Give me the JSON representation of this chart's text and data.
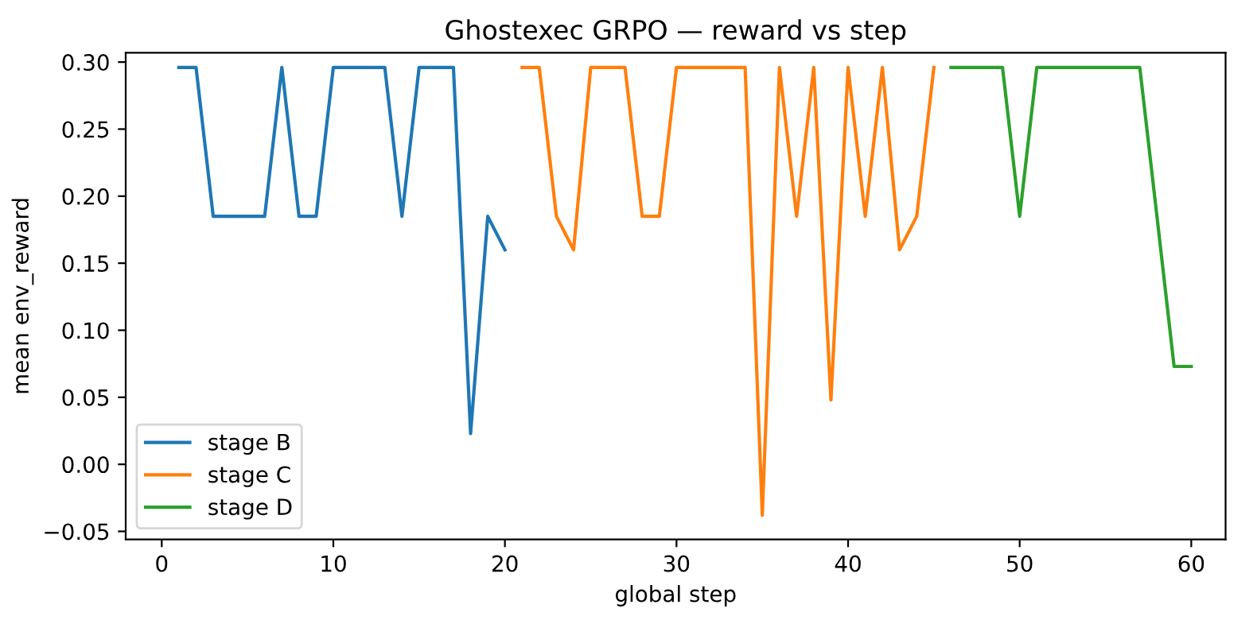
{
  "chart_data": {
    "type": "line",
    "title": "Ghostexec GRPO — reward vs step",
    "xlabel": "global step",
    "ylabel": "mean env_reward",
    "series": [
      {
        "name": "stage B",
        "color": "#1f77b4",
        "x": [
          1,
          2,
          3,
          4,
          5,
          6,
          7,
          8,
          9,
          10,
          11,
          12,
          13,
          14,
          15,
          16,
          17,
          18,
          19,
          20
        ],
        "values": [
          0.296,
          0.296,
          0.185,
          0.185,
          0.185,
          0.185,
          0.296,
          0.185,
          0.185,
          0.296,
          0.296,
          0.296,
          0.296,
          0.185,
          0.296,
          0.296,
          0.296,
          0.023,
          0.185,
          0.16
        ]
      },
      {
        "name": "stage C",
        "color": "#ff7f0e",
        "x": [
          21,
          22,
          23,
          24,
          25,
          26,
          27,
          28,
          29,
          30,
          31,
          32,
          33,
          34,
          35,
          36,
          37,
          38,
          39,
          40,
          41,
          42,
          43,
          44,
          45
        ],
        "values": [
          0.296,
          0.296,
          0.185,
          0.16,
          0.296,
          0.296,
          0.296,
          0.185,
          0.185,
          0.296,
          0.296,
          0.296,
          0.296,
          0.296,
          -0.038,
          0.296,
          0.185,
          0.296,
          0.048,
          0.296,
          0.185,
          0.296,
          0.16,
          0.185,
          0.296
        ]
      },
      {
        "name": "stage D",
        "color": "#2ca02c",
        "x": [
          46,
          47,
          48,
          49,
          50,
          51,
          52,
          53,
          54,
          55,
          56,
          57,
          58,
          59,
          60
        ],
        "values": [
          0.296,
          0.296,
          0.296,
          0.296,
          0.185,
          0.296,
          0.296,
          0.296,
          0.296,
          0.296,
          0.296,
          0.296,
          0.185,
          0.073,
          0.073
        ]
      }
    ],
    "xlim": [
      -2.1,
      62.0
    ],
    "xticks": [
      0,
      10,
      20,
      30,
      40,
      50,
      60
    ],
    "ylim": [
      -0.056,
      0.307
    ],
    "yticks": [
      {
        "value": -0.05,
        "label": "−0.05"
      },
      {
        "value": 0.0,
        "label": "0.00"
      },
      {
        "value": 0.05,
        "label": "0.05"
      },
      {
        "value": 0.1,
        "label": "0.10"
      },
      {
        "value": 0.15,
        "label": "0.15"
      },
      {
        "value": 0.2,
        "label": "0.20"
      },
      {
        "value": 0.25,
        "label": "0.25"
      },
      {
        "value": 0.3,
        "label": "0.30"
      }
    ],
    "grid": false,
    "legend": "bottom left",
    "marker": "none",
    "line_style": "solid"
  }
}
